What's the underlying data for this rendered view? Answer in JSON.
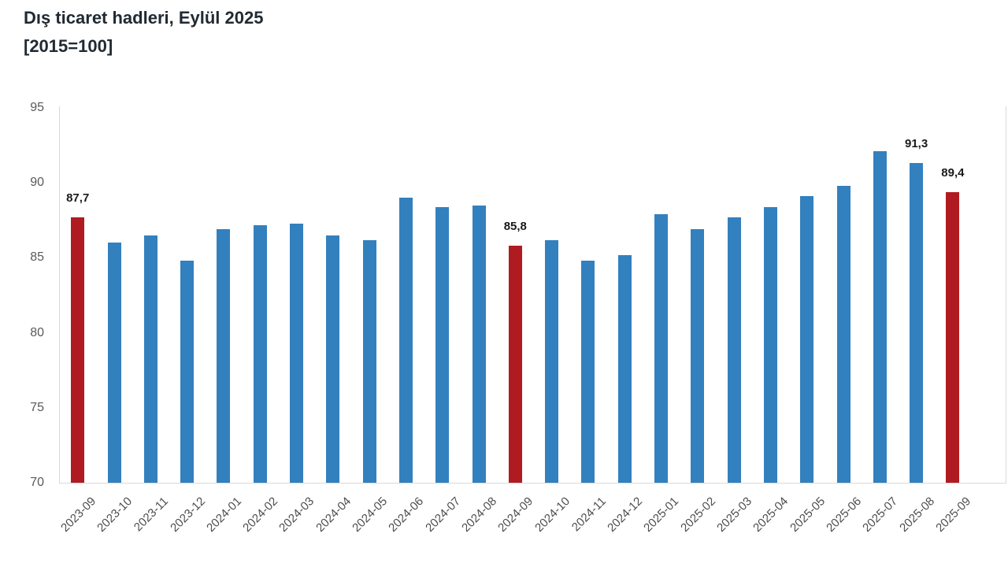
{
  "chart_data": {
    "type": "bar",
    "title": "Dış ticaret hadleri, Eylül 2025",
    "subtitle": "[2015=100]",
    "xlabel": "",
    "ylabel": "",
    "ylim": [
      70,
      95
    ],
    "yticks": [
      70,
      75,
      80,
      85,
      90,
      95
    ],
    "grid": false,
    "legend": "none",
    "categories": [
      "2023-09",
      "2023-10",
      "2023-11",
      "2023-12",
      "2024-01",
      "2024-02",
      "2024-03",
      "2024-04",
      "2024-05",
      "2024-06",
      "2024-07",
      "2024-08",
      "2024-09",
      "2024-10",
      "2024-11",
      "2024-12",
      "2025-01",
      "2025-02",
      "2025-03",
      "2025-04",
      "2025-05",
      "2025-06",
      "2025-07",
      "2025-08",
      "2025-09"
    ],
    "values": [
      87.7,
      86.0,
      86.5,
      84.8,
      86.9,
      87.2,
      87.3,
      86.5,
      86.2,
      89.0,
      88.4,
      88.5,
      85.8,
      86.2,
      84.8,
      85.2,
      87.9,
      86.9,
      87.7,
      88.4,
      89.1,
      89.8,
      92.1,
      91.3,
      89.4
    ],
    "highlighted_indices": [
      0,
      12,
      24
    ],
    "data_labels": {
      "0": "87,7",
      "12": "85,8",
      "23": "91,3",
      "24": "89,4"
    },
    "bar_color": "#3380be",
    "highlight_color": "#b01b21",
    "axis_line_color": "#d9d9d9",
    "tick_label_color": "#58595b",
    "category_label_color": "#4d4d4d",
    "value_label_color": "#1a1a1a"
  }
}
